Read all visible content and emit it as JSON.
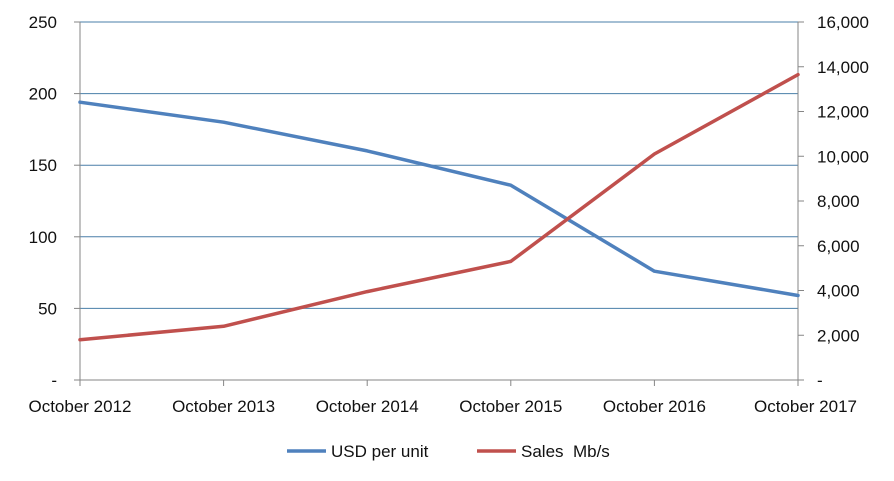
{
  "chart_data": {
    "type": "line",
    "categories": [
      "October 2012",
      "October 2013",
      "October 2014",
      "October 2015",
      "October 2016",
      "October 2017"
    ],
    "series": [
      {
        "name": "USD per unit",
        "axis": "left",
        "color": "#4f81bd",
        "values": [
          194,
          180,
          160,
          136,
          76,
          59
        ]
      },
      {
        "name": "Sales  Mb/s",
        "axis": "right",
        "color": "#c0504d",
        "values": [
          1800,
          2400,
          3950,
          5300,
          10100,
          13650
        ]
      }
    ],
    "y_left": {
      "range": [
        0,
        250
      ],
      "ticks": [
        0,
        50,
        100,
        150,
        200,
        250
      ],
      "tick_labels": [
        "-",
        "50",
        "100",
        "150",
        "200",
        "250"
      ]
    },
    "y_right": {
      "range": [
        0,
        16000
      ],
      "ticks": [
        0,
        2000,
        4000,
        6000,
        8000,
        10000,
        12000,
        14000,
        16000
      ],
      "tick_labels": [
        "-",
        "2,000",
        "4,000",
        "6,000",
        "8,000",
        "10,000",
        "12,000",
        "14,000",
        "16,000"
      ]
    },
    "grid": true,
    "grid_color": "#4a7fa8",
    "legend_position": "bottom"
  }
}
